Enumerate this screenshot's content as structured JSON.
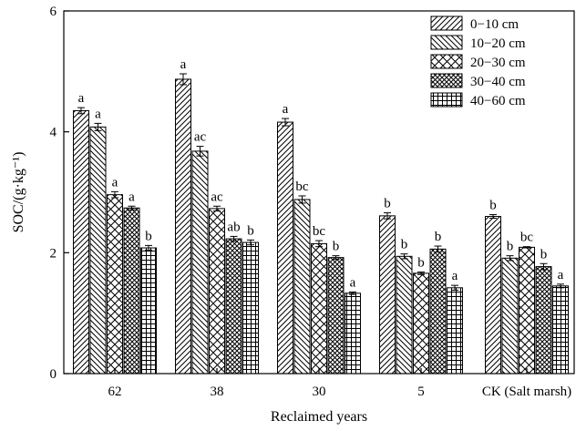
{
  "chart_data": {
    "type": "bar",
    "title": "",
    "xlabel": "Reclaimed years",
    "ylabel": "SOC/(g·kg⁻¹)",
    "ylim": [
      0,
      6
    ],
    "yticks": [
      0,
      2,
      4,
      6
    ],
    "categories": [
      "62",
      "38",
      "30",
      "5",
      "CK (Salt marsh)"
    ],
    "legend_position": "top-right",
    "series": [
      {
        "name": "0−10 cm",
        "pattern": "diag-forward",
        "values": [
          4.35,
          4.87,
          4.16,
          2.61,
          2.6
        ],
        "errors": [
          0.05,
          0.09,
          0.06,
          0.05,
          0.03
        ],
        "labels": [
          "a",
          "a",
          "a",
          "b",
          "b"
        ]
      },
      {
        "name": "10−20 cm",
        "pattern": "diag-backward",
        "values": [
          4.08,
          3.68,
          2.88,
          1.94,
          1.91
        ],
        "errors": [
          0.06,
          0.08,
          0.06,
          0.04,
          0.04
        ],
        "labels": [
          "a",
          "ac",
          "bc",
          "b",
          "b"
        ]
      },
      {
        "name": "20−30 cm",
        "pattern": "crosshatch-diag",
        "values": [
          2.96,
          2.73,
          2.15,
          1.66,
          2.09
        ],
        "errors": [
          0.05,
          0.04,
          0.05,
          0.02,
          0.01
        ],
        "labels": [
          "a",
          "ac",
          "bc",
          "b",
          "bc"
        ]
      },
      {
        "name": "30−40 cm",
        "pattern": "crosshatch-dense",
        "values": [
          2.74,
          2.23,
          1.92,
          2.06,
          1.77
        ],
        "errors": [
          0.03,
          0.04,
          0.03,
          0.05,
          0.05
        ],
        "labels": [
          "a",
          "ab",
          "b",
          "b",
          "b"
        ]
      },
      {
        "name": "40−60 cm",
        "pattern": "grid",
        "values": [
          2.08,
          2.17,
          1.33,
          1.42,
          1.45
        ],
        "errors": [
          0.04,
          0.04,
          0.02,
          0.04,
          0.03
        ],
        "labels": [
          "b",
          "b",
          "a",
          "a",
          "a"
        ]
      }
    ]
  }
}
